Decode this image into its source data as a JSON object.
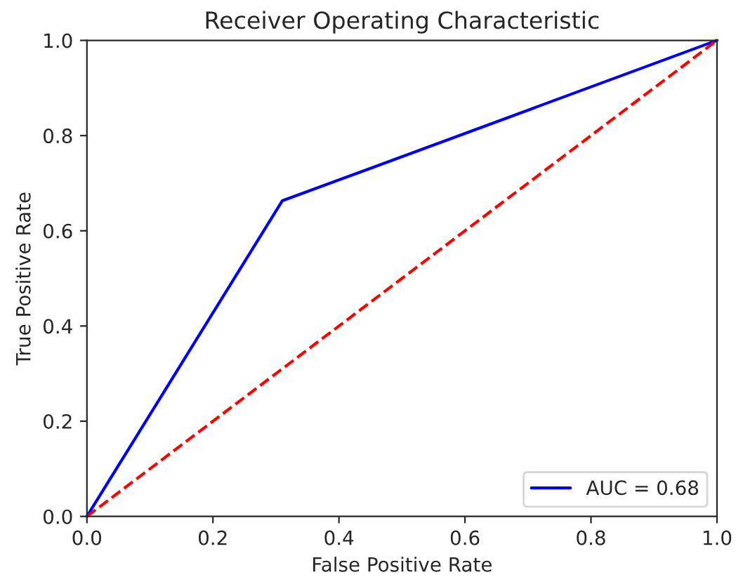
{
  "chart_data": {
    "type": "line",
    "title": "Receiver Operating Characteristic",
    "xlabel": "False Positive Rate",
    "ylabel": "True Positive Rate",
    "series": [
      {
        "name": "AUC = 0.68",
        "color": "#0000ff",
        "x": [
          0,
          0.31,
          1
        ],
        "values": [
          0,
          0.663,
          1
        ],
        "line_style": "solid"
      },
      {
        "color": "#ff0000",
        "x": [
          0,
          1
        ],
        "values": [
          0,
          1
        ],
        "line_style": "dashed"
      }
    ],
    "xlim": [
      0,
      1
    ],
    "ylim": [
      0,
      1
    ],
    "xticks": [
      {
        "value": 0,
        "label": "0.0"
      },
      0.2,
      0.4,
      0.6,
      0.8,
      {
        "value": 1,
        "label": "1.0"
      }
    ],
    "yticks": [
      {
        "value": 0,
        "label": "0.0"
      },
      0.2,
      0.4,
      0.6,
      0.8,
      {
        "value": 1,
        "label": "1.0"
      }
    ],
    "grid": false,
    "legend": "lower right"
  }
}
